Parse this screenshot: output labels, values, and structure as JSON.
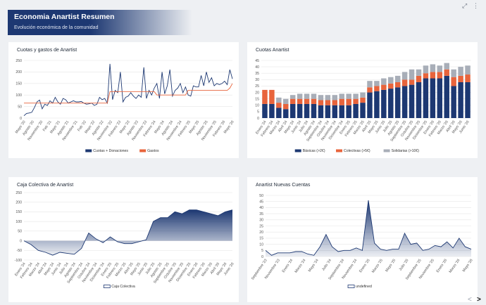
{
  "header": {
    "title": "Economia Anartist Resumen",
    "subtitle": "Evolución económica de la comunidad"
  },
  "toolbar": {
    "expand_icon": "expand-icon",
    "menu_icon": "more-icon"
  },
  "nav": {
    "prev": "<",
    "next": ">"
  },
  "colors": {
    "navy": "#1d3872",
    "orange": "#e8643c",
    "gray": "#a8aeb8"
  },
  "chart_data": [
    {
      "type": "line",
      "title": "Cuotas y gastos de Anartist",
      "ylim": [
        0,
        250
      ],
      "yticks": [
        0,
        50,
        100,
        150,
        200,
        250
      ],
      "xtick_labels": [
        "Mayo '20",
        "Agosto '20",
        "Noviembre '20",
        "Feb '21",
        "Mayo '21",
        "Agosto '21",
        "Noviembre '21",
        "Feb '22",
        "Mayo '22",
        "Agosto '22",
        "Noviembre '22",
        "Febrero '23",
        "Mayo '23",
        "Agosto '23",
        "Noviembre '23",
        "Febrero '24",
        "Mayo '24",
        "Agosto '24",
        "Noviembre '24",
        "Febrero '25",
        "Mayo '25",
        "Agosto '25",
        "Noviembre '25",
        "Febrero '26",
        "Mayo '26"
      ],
      "legend": "bottom",
      "series": [
        {
          "name": "Cuotas + Donaciones",
          "color": "#1d3872",
          "values": [
            10,
            20,
            22,
            25,
            45,
            70,
            78,
            40,
            60,
            55,
            75,
            65,
            90,
            70,
            60,
            85,
            80,
            65,
            70,
            75,
            70,
            70,
            72,
            65,
            60,
            62,
            65,
            55,
            60,
            90,
            80,
            85,
            65,
            235,
            80,
            120,
            110,
            200,
            70,
            90,
            95,
            110,
            95,
            85,
            100,
            90,
            220,
            85,
            120,
            100,
            130,
            150,
            85,
            200,
            105,
            140,
            210,
            95,
            120,
            130,
            150,
            110,
            135,
            100,
            95,
            140,
            135,
            135,
            185,
            140,
            200,
            155,
            175,
            140,
            150,
            145,
            150,
            160,
            145,
            210,
            170
          ]
        },
        {
          "name": "Gastos",
          "color": "#e8643c",
          "values": [
            65,
            65,
            65,
            65,
            65,
            65,
            65,
            65,
            65,
            65,
            65,
            65,
            65,
            65,
            65,
            65,
            65,
            65,
            65,
            65,
            65,
            65,
            65,
            65,
            65,
            65,
            65,
            65,
            65,
            65,
            65,
            65,
            65,
            115,
            115,
            115,
            115,
            115,
            115,
            115,
            115,
            115,
            115,
            115,
            115,
            115,
            115,
            115,
            115,
            115,
            115,
            100,
            100,
            100,
            100,
            100,
            100,
            100,
            100,
            100,
            100,
            100,
            100,
            120,
            120,
            120,
            120,
            120,
            120,
            120,
            120,
            120,
            120,
            120,
            120,
            120,
            120,
            120,
            120,
            130,
            150
          ]
        }
      ]
    },
    {
      "type": "bar",
      "stacked": true,
      "title": "Cuotas Anartist",
      "ylim": [
        0,
        45
      ],
      "yticks": [
        0,
        5,
        10,
        15,
        20,
        25,
        30,
        35,
        40,
        45
      ],
      "categories": [
        "Enero '24",
        "Febrero '24",
        "Marzo '24",
        "Abril '24",
        "Mayo '24",
        "Junio '24",
        "Julio '24",
        "Agosto '24",
        "Septiembre '24",
        "Octubre '24",
        "Noviembre '24",
        "Diciembre '24",
        "Enero '25",
        "Febrero '25",
        "Marzo '25",
        "Abril '25",
        "Mayo '25",
        "Junio '25",
        "Julio '25",
        "Agosto '25",
        "Septiembre '25",
        "Octubre '25",
        "Noviembre '25",
        "Diciembre '25",
        "Enero '26",
        "Febrero '26",
        "Marzo '26",
        "Abril '26",
        "Mayo '26",
        "Junio '26"
      ],
      "legend": "bottom",
      "series": [
        {
          "name": "Básicas (>2€)",
          "color": "#1d3872",
          "values": [
            11,
            11,
            8,
            7,
            11,
            11,
            11,
            11,
            10,
            10,
            10,
            10,
            10,
            11,
            12,
            20,
            21,
            22,
            23,
            24,
            25,
            26,
            28,
            31,
            31,
            31,
            33,
            25,
            28,
            28
          ]
        },
        {
          "name": "Colectivas (>5€)",
          "color": "#e8643c",
          "values": [
            11,
            11,
            4,
            4,
            4,
            4,
            4,
            4,
            4,
            4,
            4,
            5,
            5,
            4,
            4,
            4,
            4,
            4,
            4,
            4,
            5,
            4,
            5,
            4,
            5,
            5,
            5,
            7,
            5,
            6
          ]
        },
        {
          "name": "Solidarias (>10€)",
          "color": "#a8aeb8",
          "values": [
            0,
            0,
            4,
            4,
            3,
            4,
            4,
            4,
            4,
            4,
            4,
            4,
            4,
            4,
            4,
            5,
            4,
            5,
            5,
            5,
            6,
            8,
            5,
            6,
            6,
            5,
            5,
            6,
            7,
            7
          ]
        }
      ]
    },
    {
      "type": "area",
      "title": "Caja Colectiva de Anartist",
      "ylim": [
        -100,
        250
      ],
      "yticks": [
        -100,
        -50,
        0,
        50,
        100,
        150,
        200,
        250
      ],
      "xtick_labels": [
        "Enero '24",
        "Febrero '24",
        "Marzo '24",
        "Abril '24",
        "Mayo '24",
        "Junio '24",
        "Julio '24",
        "Agosto '24",
        "Septiembre '24",
        "Octubre '24",
        "Noviembre '24",
        "Diciembre '24",
        "Enero '25",
        "Febrero '25",
        "Marzo '25",
        "Abril '25",
        "Mayo '25",
        "Junio '25",
        "Julio '25",
        "Agosto '25",
        "Septiembre '25",
        "Octubre '25",
        "Noviembre '25",
        "Diciembre '25",
        "Enero '26",
        "Febrero '26",
        "Marzo '26",
        "Abril '26",
        "Mayo '26",
        "Junio '26"
      ],
      "legend": "bottom",
      "series": [
        {
          "name": "Caja Colectiva",
          "color": "#1d3872",
          "values": [
            0,
            -20,
            -50,
            -60,
            -75,
            -60,
            -65,
            -70,
            -40,
            40,
            10,
            -10,
            20,
            -5,
            -15,
            -15,
            -5,
            5,
            100,
            120,
            120,
            150,
            140,
            160,
            160,
            150,
            140,
            130,
            150,
            160
          ]
        }
      ]
    },
    {
      "type": "area",
      "title": "Anartist Nuevas Cuentas",
      "ylim": [
        0,
        50
      ],
      "yticks": [
        0,
        5,
        10,
        15,
        20,
        25,
        30,
        35,
        40,
        45,
        50
      ],
      "xtick_labels": [
        "Septiembre '23",
        "Noviembre '23",
        "Enero '24",
        "Marzo '24",
        "Mayo '24",
        "Julio '24",
        "Septiembre '24",
        "Noviembre '24",
        "Enero '25",
        "Marzo '25",
        "Mayo '25",
        "Julio '25",
        "Septiembre '25",
        "Noviembre '25",
        "Enero '26",
        "Marzo '26",
        "Mayo '26"
      ],
      "legend": "bottom",
      "series": [
        {
          "name": "undefined",
          "color": "#1d3872",
          "values": [
            5,
            1,
            3,
            3,
            3,
            4,
            4,
            2,
            1,
            8,
            18,
            8,
            4,
            5,
            5,
            7,
            5,
            46,
            11,
            6,
            5,
            6,
            6,
            19,
            10,
            11,
            5,
            6,
            9,
            8,
            12,
            7,
            15,
            8,
            6
          ]
        }
      ]
    }
  ]
}
